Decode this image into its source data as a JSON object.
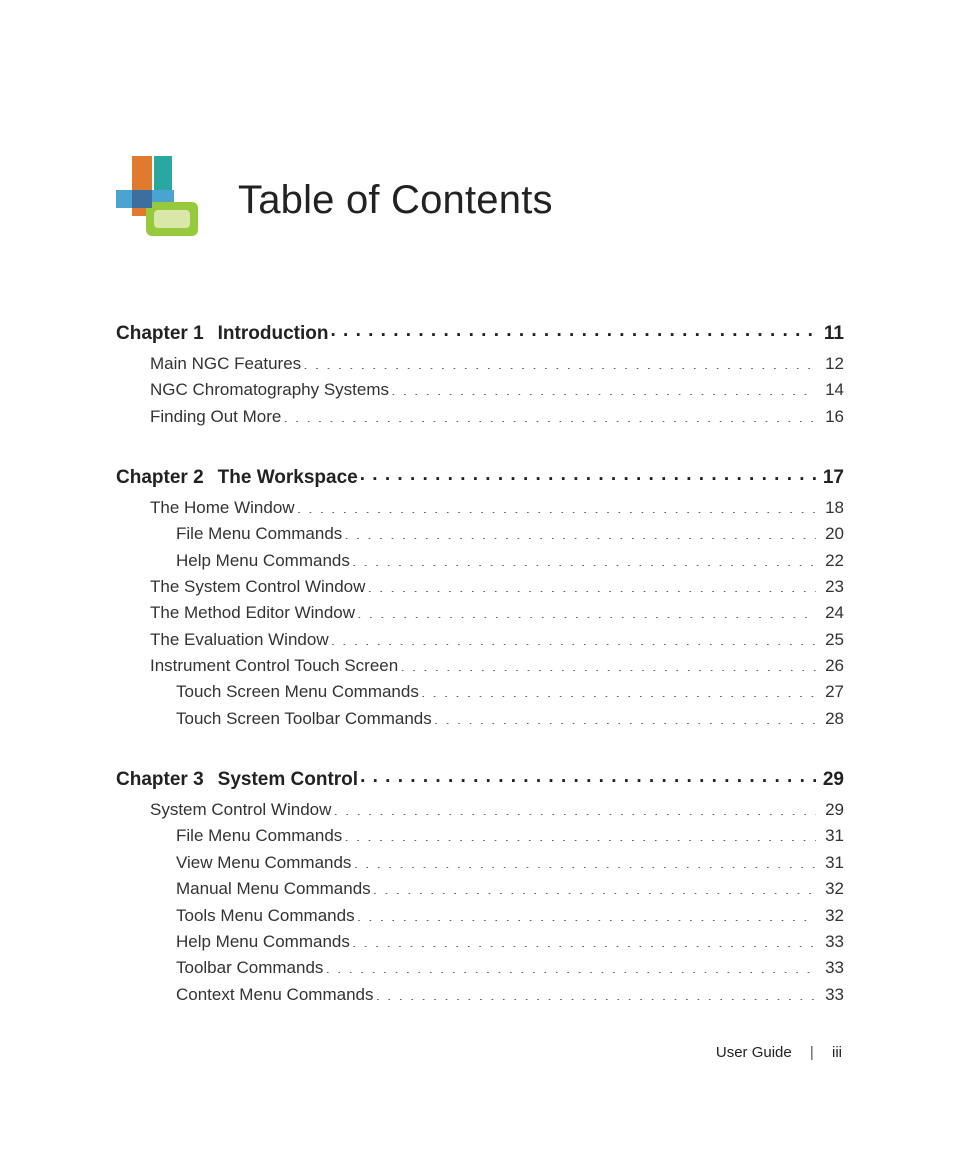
{
  "page": {
    "title": "Table of Contents",
    "title_fontsize": 40,
    "title_color": "#111111",
    "background_color": "#ffffff",
    "text_color": "#333333",
    "chapter_fontsize": 19,
    "item_fontsize": 17,
    "leader_char": "."
  },
  "logo": {
    "colors": {
      "orange": "#e07b2e",
      "teal": "#2aa7a0",
      "green": "#97c93d",
      "blue": "#4aa3d1",
      "light": "#d9e8a8"
    }
  },
  "toc": [
    {
      "chapter_label": "Chapter 1",
      "chapter_title": "Introduction",
      "page": "11",
      "items": [
        {
          "label": "Main NGC Features",
          "page": "12",
          "indent": 1
        },
        {
          "label": "NGC Chromatography Systems",
          "page": "14",
          "indent": 1
        },
        {
          "label": "Finding Out More",
          "page": "16",
          "indent": 1
        }
      ]
    },
    {
      "chapter_label": "Chapter 2",
      "chapter_title": "The Workspace",
      "page": "17",
      "items": [
        {
          "label": "The Home Window",
          "page": "18",
          "indent": 1
        },
        {
          "label": "File Menu Commands",
          "page": "20",
          "indent": 2
        },
        {
          "label": "Help Menu Commands",
          "page": "22",
          "indent": 2
        },
        {
          "label": "The System Control Window",
          "page": "23",
          "indent": 1
        },
        {
          "label": "The Method Editor Window",
          "page": "24",
          "indent": 1
        },
        {
          "label": "The Evaluation Window",
          "page": "25",
          "indent": 1
        },
        {
          "label": "Instrument Control Touch Screen",
          "page": "26",
          "indent": 1
        },
        {
          "label": "Touch Screen Menu Commands",
          "page": "27",
          "indent": 2
        },
        {
          "label": "Touch Screen Toolbar Commands",
          "page": "28",
          "indent": 2
        }
      ]
    },
    {
      "chapter_label": "Chapter 3",
      "chapter_title": "System Control",
      "page": "29",
      "items": [
        {
          "label": "System Control Window",
          "page": "29",
          "indent": 1
        },
        {
          "label": "File Menu Commands",
          "page": "31",
          "indent": 2
        },
        {
          "label": "View Menu Commands",
          "page": "31",
          "indent": 2
        },
        {
          "label": "Manual Menu Commands",
          "page": "32",
          "indent": 2
        },
        {
          "label": "Tools Menu Commands",
          "page": "32",
          "indent": 2
        },
        {
          "label": "Help Menu Commands",
          "page": "33",
          "indent": 2
        },
        {
          "label": "Toolbar Commands",
          "page": "33",
          "indent": 2
        },
        {
          "label": "Context Menu Commands",
          "page": "33",
          "indent": 2
        }
      ]
    }
  ],
  "footer": {
    "doc_label": "User Guide",
    "separator": "|",
    "page_number": "iii"
  }
}
